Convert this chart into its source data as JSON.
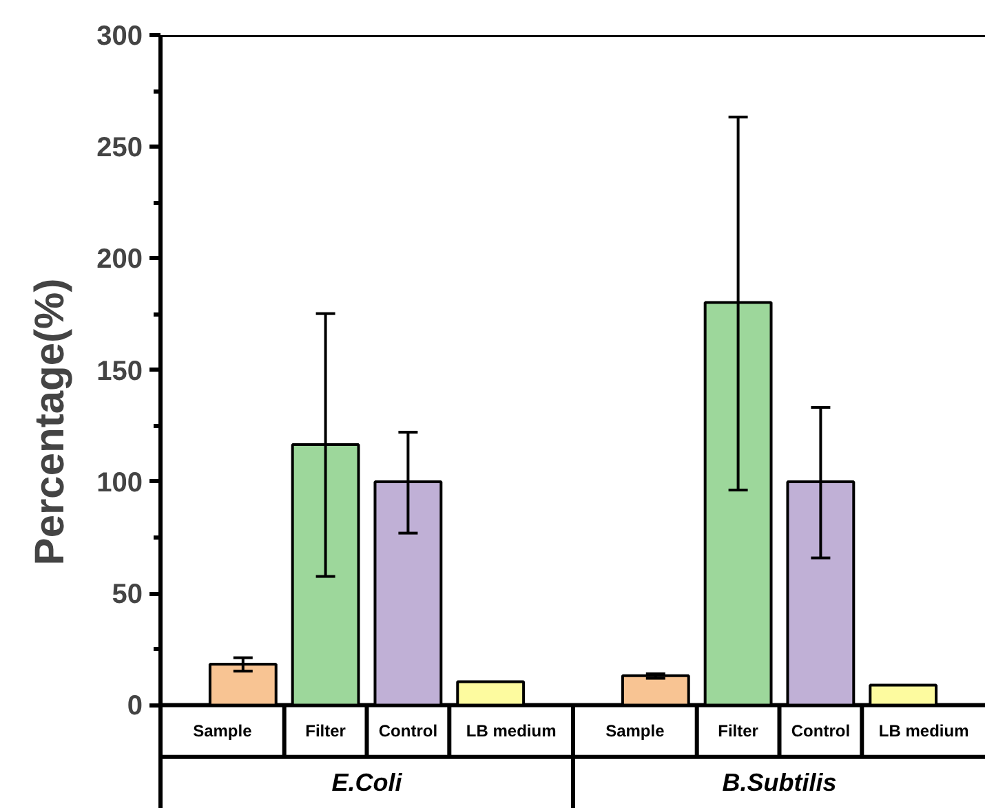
{
  "chart_data": {
    "type": "bar",
    "ylabel": "Percentage(%)",
    "categories": [
      "Sample",
      "Filter",
      "Control",
      "LB medium",
      "Sample",
      "Filter",
      "Control",
      "LB medium"
    ],
    "values": [
      18.3,
      116.6,
      100,
      10.5,
      13.2,
      180.3,
      100,
      8.9
    ],
    "colors": [
      "#f8c493",
      "#9dd79b",
      "#c0b0d6",
      "#fdfb9f",
      "#f8c493",
      "#9dd79b",
      "#c0b0d6",
      "#fdfb9f"
    ],
    "errors": [
      [
        15.2,
        21.2
      ],
      [
        57.6,
        175.3
      ],
      [
        77,
        122.2
      ],
      null,
      [
        12,
        14
      ],
      [
        96.3,
        263.3
      ],
      [
        65.9,
        133.3
      ],
      null
    ],
    "annotations": [
      "E.Coli",
      "B.Subtilis"
    ],
    "ylim": [
      0,
      300
    ],
    "yticks": [
      0,
      {
        "value": 25,
        "label": null
      },
      50,
      {
        "value": 75,
        "label": null
      },
      100,
      {
        "value": 125,
        "label": null
      },
      150,
      {
        "value": 175,
        "label": null
      },
      200,
      {
        "value": 225,
        "label": null
      },
      250,
      {
        "value": 275,
        "label": null
      },
      300
    ],
    "grid": false
  }
}
